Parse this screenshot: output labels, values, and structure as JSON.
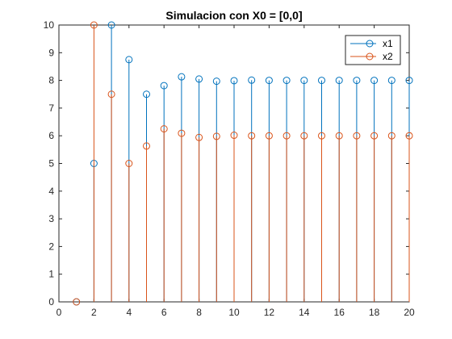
{
  "chart_data": {
    "type": "stem",
    "title": "Simulacion con X0 = [0,0]",
    "xlabel": "",
    "ylabel": "",
    "xlim": [
      0,
      20
    ],
    "ylim": [
      0,
      10
    ],
    "xticks": [
      0,
      2,
      4,
      6,
      8,
      10,
      12,
      14,
      16,
      18,
      20
    ],
    "yticks": [
      0,
      1,
      2,
      3,
      4,
      5,
      6,
      7,
      8,
      9,
      10
    ],
    "grid": false,
    "legend": "top-right",
    "x": [
      1,
      2,
      3,
      4,
      5,
      6,
      7,
      8,
      9,
      10,
      11,
      12,
      13,
      14,
      15,
      16,
      17,
      18,
      19,
      20
    ],
    "series": [
      {
        "name": "x1",
        "color": "#0072BD",
        "values": [
          0,
          5,
          10,
          8.75,
          7.5,
          7.81,
          8.13,
          8.05,
          7.97,
          7.99,
          8.01,
          8.0,
          8.0,
          8.0,
          8.0,
          8.0,
          8.0,
          8.0,
          8.0,
          8.0
        ]
      },
      {
        "name": "x2",
        "color": "#D95319",
        "values": [
          0,
          10,
          7.5,
          5,
          5.63,
          6.25,
          6.09,
          5.94,
          5.98,
          6.02,
          6.0,
          6.0,
          6.0,
          6.0,
          6.0,
          6.0,
          6.0,
          6.0,
          6.0,
          6.0
        ]
      }
    ]
  }
}
